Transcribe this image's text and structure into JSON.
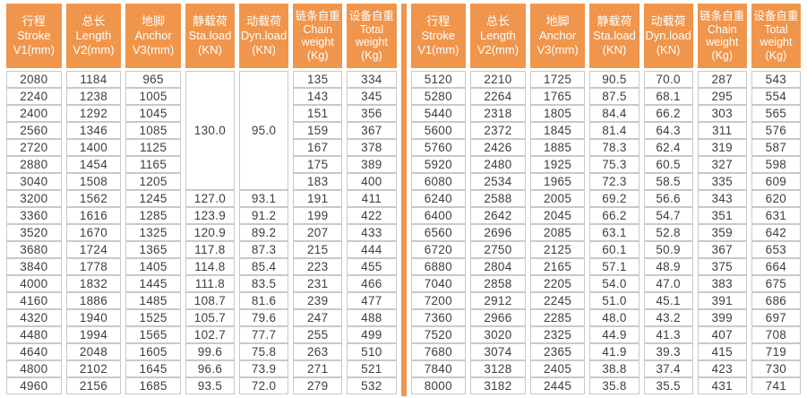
{
  "colors": {
    "accent": "#F0954C",
    "cell_border": "#C9C9C9",
    "header_text": "#FFFFFF",
    "cell_text": "#3E3E3E"
  },
  "columns": [
    {
      "id": "stroke",
      "lines": [
        "行程",
        "Stroke",
        "V1(mm)"
      ]
    },
    {
      "id": "length",
      "lines": [
        "总长",
        "Length",
        "V2(mm)"
      ]
    },
    {
      "id": "anchor",
      "lines": [
        "地脚",
        "Anchor",
        "V3(mm)"
      ]
    },
    {
      "id": "sta-load",
      "lines": [
        "静载荷",
        "Sta.load",
        "(KN)"
      ]
    },
    {
      "id": "dyn-load",
      "lines": [
        "动载荷",
        "Dyn.load",
        "(KN)"
      ]
    },
    {
      "id": "chain-weight",
      "lines": [
        "链条自重",
        "Chain",
        "weight",
        "(Kg)"
      ]
    },
    {
      "id": "total-weight",
      "lines": [
        "设备自重",
        "Total",
        "weight",
        "(Kg)"
      ]
    }
  ],
  "left_table": {
    "merged": {
      "rows": 7,
      "sta_load": "130.0",
      "dyn_load": "95.0"
    },
    "rows": [
      [
        "2080",
        "1184",
        "965",
        null,
        null,
        "135",
        "334"
      ],
      [
        "2240",
        "1238",
        "1005",
        null,
        null,
        "143",
        "345"
      ],
      [
        "2400",
        "1292",
        "1045",
        null,
        null,
        "151",
        "356"
      ],
      [
        "2560",
        "1346",
        "1085",
        null,
        null,
        "159",
        "367"
      ],
      [
        "2720",
        "1400",
        "1125",
        null,
        null,
        "167",
        "378"
      ],
      [
        "2880",
        "1454",
        "1165",
        null,
        null,
        "175",
        "389"
      ],
      [
        "3040",
        "1508",
        "1205",
        null,
        null,
        "183",
        "400"
      ],
      [
        "3200",
        "1562",
        "1245",
        "127.0",
        "93.1",
        "191",
        "411"
      ],
      [
        "3360",
        "1616",
        "1285",
        "123.9",
        "91.2",
        "199",
        "422"
      ],
      [
        "3520",
        "1670",
        "1325",
        "120.9",
        "89.2",
        "207",
        "433"
      ],
      [
        "3680",
        "1724",
        "1365",
        "117.8",
        "87.3",
        "215",
        "444"
      ],
      [
        "3840",
        "1778",
        "1405",
        "114.8",
        "85.4",
        "223",
        "455"
      ],
      [
        "4000",
        "1832",
        "1445",
        "111.8",
        "83.5",
        "231",
        "466"
      ],
      [
        "4160",
        "1886",
        "1485",
        "108.7",
        "81.6",
        "239",
        "477"
      ],
      [
        "4320",
        "1940",
        "1525",
        "105.7",
        "79.6",
        "247",
        "488"
      ],
      [
        "4480",
        "1994",
        "1565",
        "102.7",
        "77.7",
        "255",
        "499"
      ],
      [
        "4640",
        "2048",
        "1605",
        "99.6",
        "75.8",
        "263",
        "510"
      ],
      [
        "4800",
        "2102",
        "1645",
        "96.6",
        "73.9",
        "271",
        "521"
      ],
      [
        "4960",
        "2156",
        "1685",
        "93.5",
        "72.0",
        "279",
        "532"
      ]
    ]
  },
  "right_table": {
    "rows": [
      [
        "5120",
        "2210",
        "1725",
        "90.5",
        "70.0",
        "287",
        "543"
      ],
      [
        "5280",
        "2264",
        "1765",
        "87.5",
        "68.1",
        "295",
        "554"
      ],
      [
        "5440",
        "2318",
        "1805",
        "84.4",
        "66.2",
        "303",
        "565"
      ],
      [
        "5600",
        "2372",
        "1845",
        "81.4",
        "64.3",
        "311",
        "576"
      ],
      [
        "5760",
        "2426",
        "1885",
        "78.3",
        "62.4",
        "319",
        "587"
      ],
      [
        "5920",
        "2480",
        "1925",
        "75.3",
        "60.5",
        "327",
        "598"
      ],
      [
        "6080",
        "2534",
        "1965",
        "72.3",
        "58.5",
        "335",
        "609"
      ],
      [
        "6240",
        "2588",
        "2005",
        "69.2",
        "56.6",
        "343",
        "620"
      ],
      [
        "6400",
        "2642",
        "2045",
        "66.2",
        "54.7",
        "351",
        "631"
      ],
      [
        "6560",
        "2696",
        "2085",
        "63.1",
        "52.8",
        "359",
        "642"
      ],
      [
        "6720",
        "2750",
        "2125",
        "60.1",
        "50.9",
        "367",
        "653"
      ],
      [
        "6880",
        "2804",
        "2165",
        "57.1",
        "48.9",
        "375",
        "664"
      ],
      [
        "7040",
        "2858",
        "2205",
        "54.0",
        "47.0",
        "383",
        "675"
      ],
      [
        "7200",
        "2912",
        "2245",
        "51.0",
        "45.1",
        "391",
        "686"
      ],
      [
        "7360",
        "2966",
        "2285",
        "48.0",
        "43.2",
        "399",
        "697"
      ],
      [
        "7520",
        "3020",
        "2325",
        "44.9",
        "41.3",
        "407",
        "708"
      ],
      [
        "7680",
        "3074",
        "2365",
        "41.9",
        "39.3",
        "415",
        "719"
      ],
      [
        "7840",
        "3128",
        "2405",
        "38.8",
        "37.4",
        "423",
        "730"
      ],
      [
        "8000",
        "3182",
        "2445",
        "35.8",
        "35.5",
        "431",
        "741"
      ]
    ]
  }
}
